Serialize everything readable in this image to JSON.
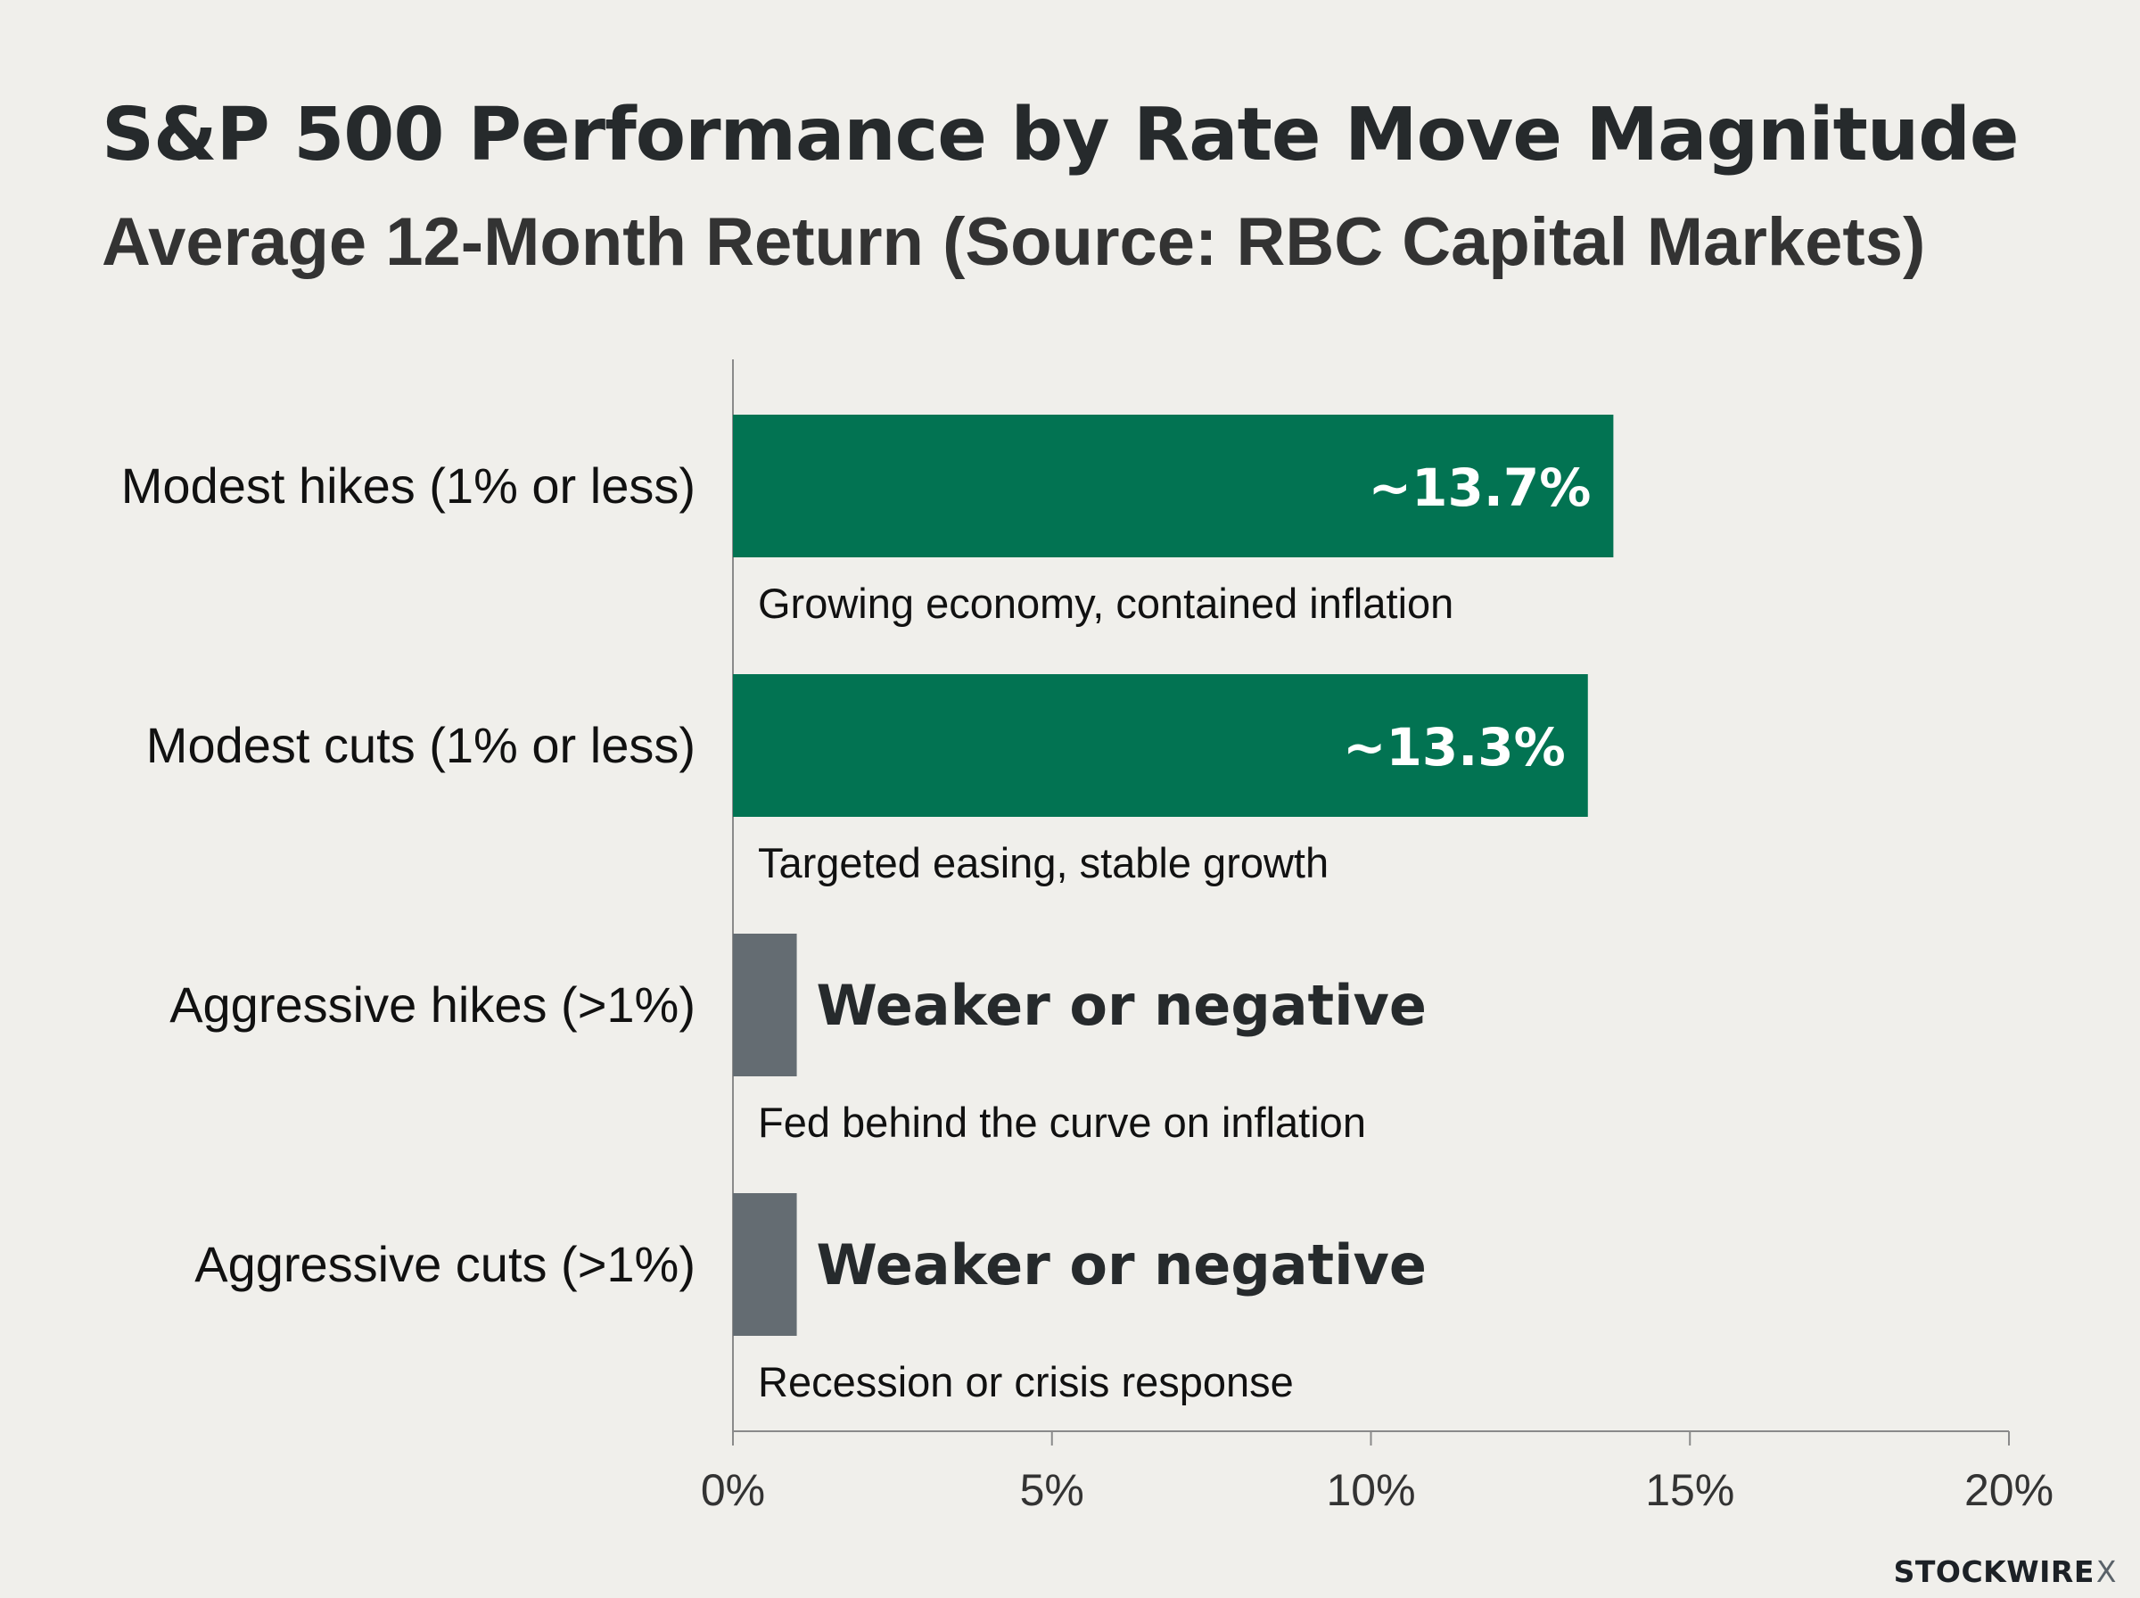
{
  "chart_data": {
    "type": "bar",
    "orientation": "horizontal",
    "title": "S&P 500 Performance by Rate Move Magnitude",
    "subtitle": "Average 12-Month Return (Source: RBC Capital Markets)",
    "xlim": [
      0,
      20
    ],
    "x_ticks": [
      0,
      5,
      10,
      15,
      20
    ],
    "x_tick_labels": [
      "0%",
      "5%",
      "10%",
      "15%",
      "20%"
    ],
    "grid": false,
    "categories": [
      "Modest hikes (1% or less)",
      "Modest cuts (1% or less)",
      "Aggressive hikes (>1%)",
      "Aggressive cuts (>1%)"
    ],
    "values": [
      13.8,
      13.4,
      1.0,
      1.0
    ],
    "value_labels": [
      "~13.7%",
      "~13.3%",
      "Weaker or negative",
      "Weaker or negative"
    ],
    "annotations": [
      "Growing economy, contained inflation",
      "Targeted easing, stable growth",
      "Fed behind the curve on inflation",
      "Recession or crisis response"
    ],
    "bar_colors": [
      "#027352",
      "#027352",
      "#646c72",
      "#646c72"
    ]
  },
  "watermark": {
    "brand": "STOCKWIRE",
    "mark": "X"
  }
}
